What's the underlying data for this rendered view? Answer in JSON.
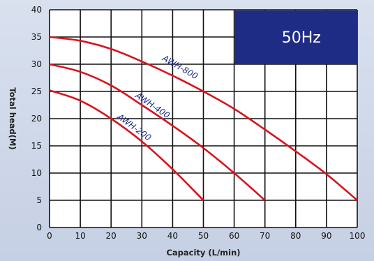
{
  "chart_data": {
    "type": "line",
    "xlabel": "Capacity (L/min)",
    "ylabel": "Total head(M)",
    "xlim": [
      0,
      100
    ],
    "ylim": [
      0,
      40
    ],
    "x_ticks": [
      0,
      10,
      20,
      30,
      40,
      50,
      60,
      70,
      80,
      90,
      100
    ],
    "y_ticks": [
      0,
      5,
      10,
      15,
      20,
      25,
      30,
      35,
      40
    ],
    "grid": true,
    "annotation": "50Hz",
    "series": [
      {
        "name": "AWH-800",
        "color": "#d8141e",
        "points": [
          [
            0,
            35
          ],
          [
            10,
            34.3
          ],
          [
            20,
            32.8
          ],
          [
            30,
            30.5
          ],
          [
            40,
            27.9
          ],
          [
            50,
            25
          ],
          [
            60,
            21.8
          ],
          [
            70,
            18
          ],
          [
            80,
            14
          ],
          [
            90,
            9.8
          ],
          [
            100,
            5
          ]
        ]
      },
      {
        "name": "AWH-400",
        "color": "#d8141e",
        "points": [
          [
            0,
            30
          ],
          [
            10,
            28.6
          ],
          [
            20,
            26.1
          ],
          [
            30,
            22.5
          ],
          [
            40,
            18.7
          ],
          [
            50,
            14.6
          ],
          [
            60,
            10
          ],
          [
            70,
            5
          ]
        ]
      },
      {
        "name": "AWH-200",
        "color": "#d8141e",
        "points": [
          [
            0,
            25.2
          ],
          [
            10,
            23.3
          ],
          [
            20,
            20
          ],
          [
            30,
            15.8
          ],
          [
            40,
            10.7
          ],
          [
            50,
            5
          ]
        ]
      }
    ]
  }
}
